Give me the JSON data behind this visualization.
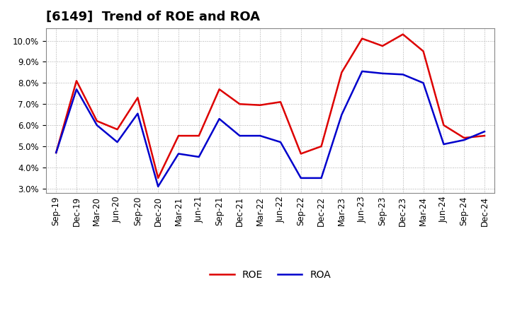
{
  "title": "[6149]  Trend of ROE and ROA",
  "x_labels": [
    "Sep-19",
    "Dec-19",
    "Mar-20",
    "Jun-20",
    "Sep-20",
    "Dec-20",
    "Mar-21",
    "Jun-21",
    "Sep-21",
    "Dec-21",
    "Mar-22",
    "Jun-22",
    "Sep-22",
    "Dec-22",
    "Mar-23",
    "Jun-23",
    "Sep-23",
    "Dec-23",
    "Mar-24",
    "Jun-24",
    "Sep-24",
    "Dec-24"
  ],
  "roe": [
    4.7,
    8.1,
    6.2,
    5.8,
    7.3,
    3.5,
    5.5,
    5.5,
    7.7,
    7.0,
    6.95,
    7.1,
    4.65,
    5.0,
    8.5,
    10.1,
    9.75,
    10.3,
    9.5,
    6.0,
    5.4,
    5.5
  ],
  "roa": [
    4.7,
    7.7,
    6.0,
    5.2,
    6.55,
    3.1,
    4.65,
    4.5,
    6.3,
    5.5,
    5.5,
    5.2,
    3.5,
    3.5,
    6.5,
    8.55,
    8.45,
    8.4,
    8.0,
    5.1,
    5.3,
    5.7
  ],
  "roe_color": "#dd0000",
  "roa_color": "#0000cc",
  "ylim": [
    2.8,
    10.6
  ],
  "yticks": [
    3.0,
    4.0,
    5.0,
    6.0,
    7.0,
    8.0,
    9.0,
    10.0
  ],
  "background_color": "#ffffff",
  "plot_bg_color": "#ffffff",
  "grid_color": "#aaaaaa",
  "title_fontsize": 13,
  "axis_fontsize": 8.5,
  "legend_fontsize": 10,
  "line_width": 1.8
}
